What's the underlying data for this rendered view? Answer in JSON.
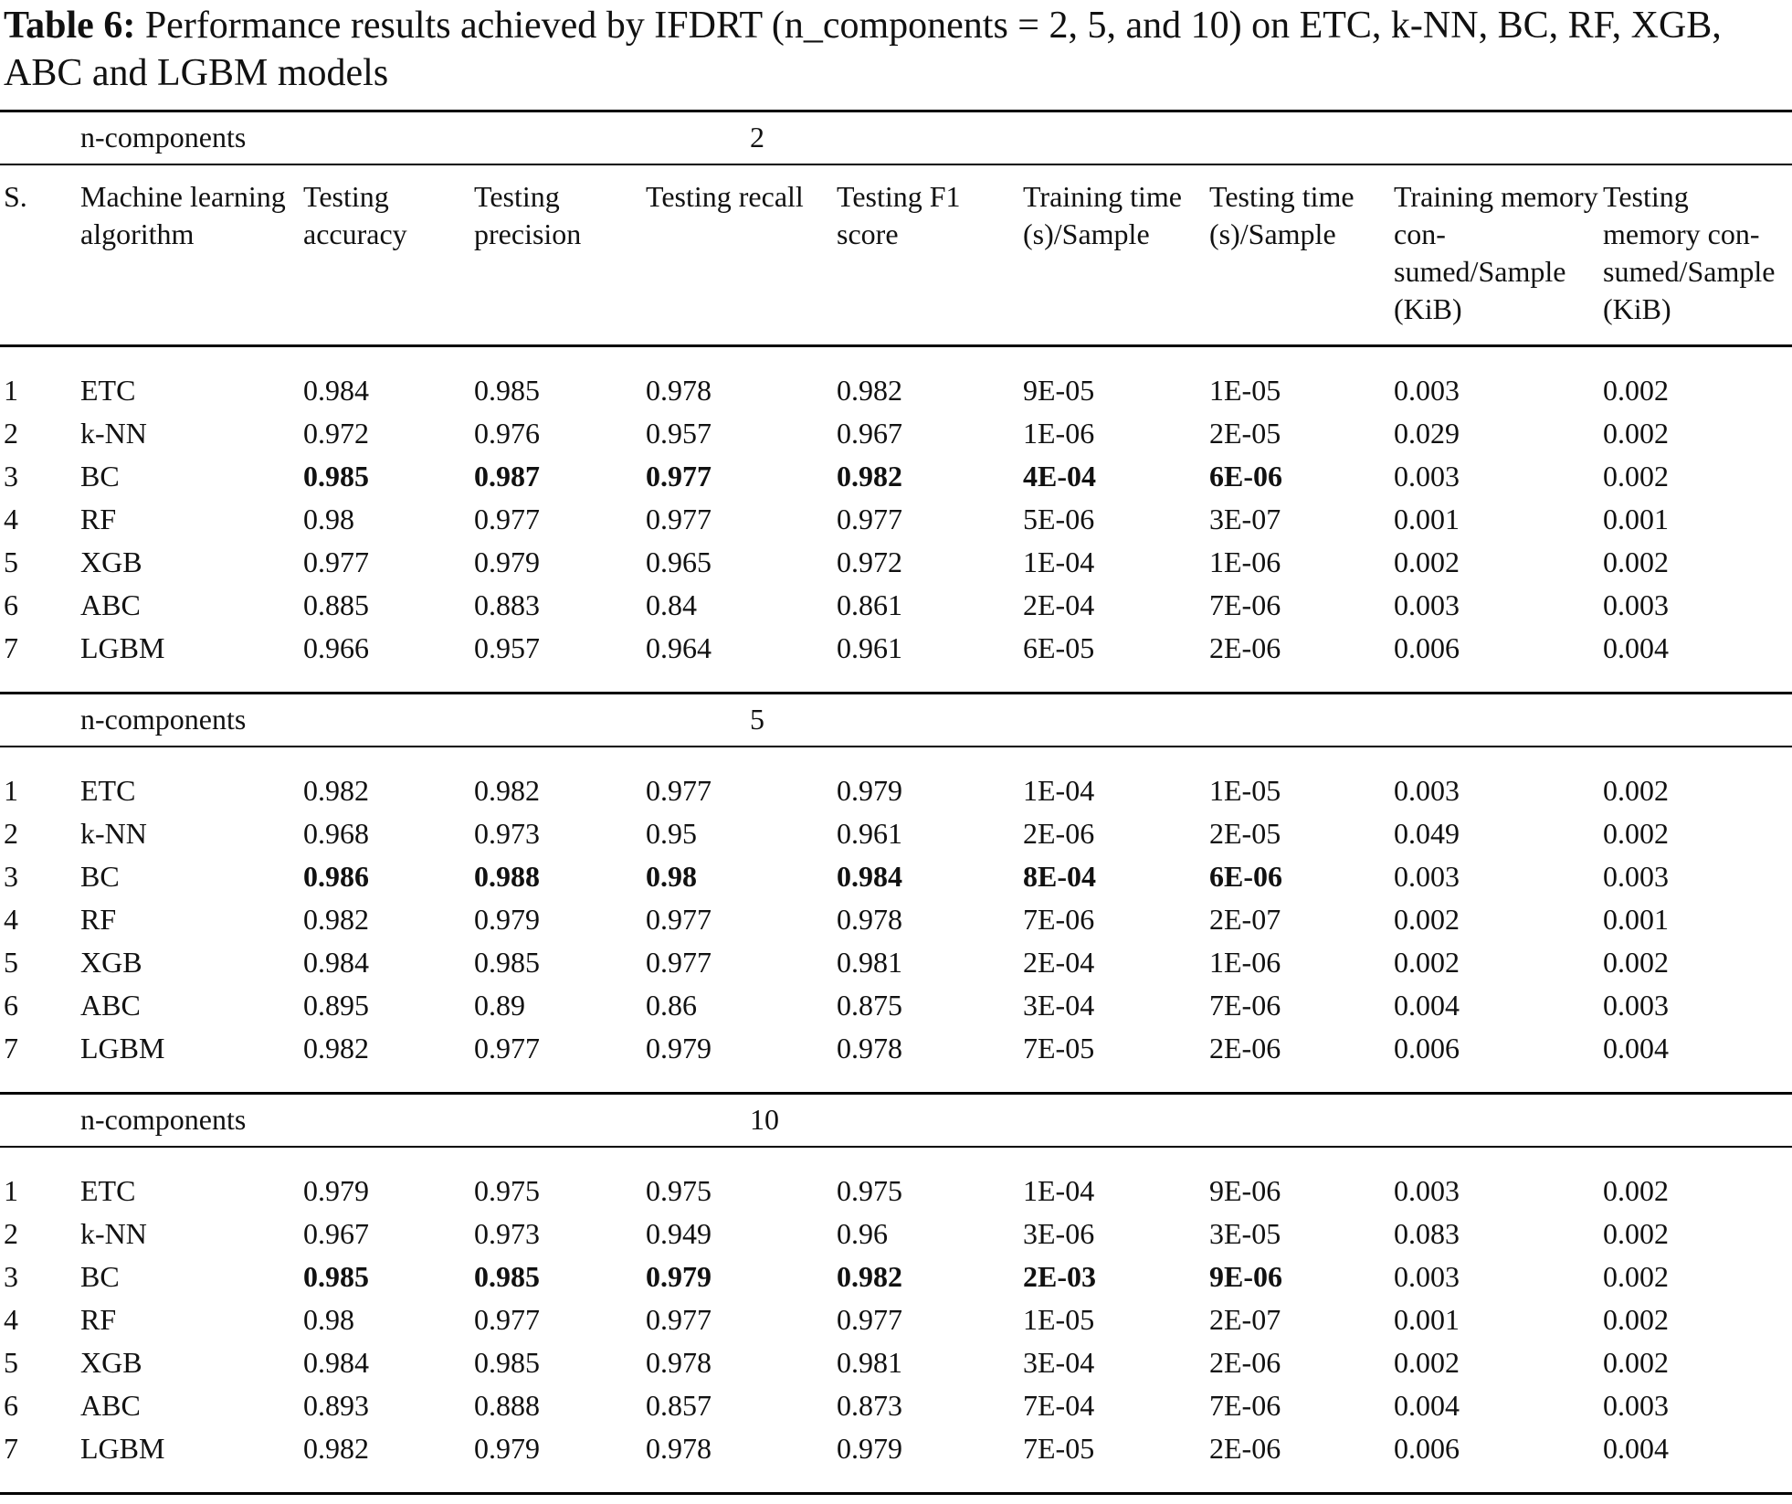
{
  "caption": {
    "label": "Table 6:",
    "text": "Performance results achieved by IFDRT (n_components = 2, 5, and 10) on ETC, k-NN, BC, RF, XGB, ABC and LGBM models"
  },
  "table": {
    "columns": [
      "S.",
      "Machine learning algorithm",
      "Testing accuracy",
      "Testing precision",
      "Testing recall",
      "Testing F1 score",
      "Training time (s)/Sample",
      "Testing time (s)/Sample",
      "Training memory con-sumed/Sample (KiB)",
      "Testing memory con-sumed/Sample (KiB)"
    ],
    "sections": [
      {
        "label": "n-components",
        "value": "2",
        "rows": [
          [
            "1",
            "ETC",
            "0.984",
            "0.985",
            "0.978",
            "0.982",
            "9E-05",
            "1E-05",
            "0.003",
            "0.002"
          ],
          [
            "2",
            "k-NN",
            "0.972",
            "0.976",
            "0.957",
            "0.967",
            "1E-06",
            "2E-05",
            "0.029",
            "0.002"
          ],
          [
            "3",
            "BC",
            "0.985",
            "0.987",
            "0.977",
            "0.982",
            "4E-04",
            "6E-06",
            "0.003",
            "0.002"
          ],
          [
            "4",
            "RF",
            "0.98",
            "0.977",
            "0.977",
            "0.977",
            "5E-06",
            "3E-07",
            "0.001",
            "0.001"
          ],
          [
            "5",
            "XGB",
            "0.977",
            "0.979",
            "0.965",
            "0.972",
            "1E-04",
            "1E-06",
            "0.002",
            "0.002"
          ],
          [
            "6",
            "ABC",
            "0.885",
            "0.883",
            "0.84",
            "0.861",
            "2E-04",
            "7E-06",
            "0.003",
            "0.003"
          ],
          [
            "7",
            "LGBM",
            "0.966",
            "0.957",
            "0.964",
            "0.961",
            "6E-05",
            "2E-06",
            "0.006",
            "0.004"
          ]
        ]
      },
      {
        "label": "n-components",
        "value": "5",
        "rows": [
          [
            "1",
            "ETC",
            "0.982",
            "0.982",
            "0.977",
            "0.979",
            "1E-04",
            "1E-05",
            "0.003",
            "0.002"
          ],
          [
            "2",
            "k-NN",
            "0.968",
            "0.973",
            "0.95",
            "0.961",
            "2E-06",
            "2E-05",
            "0.049",
            "0.002"
          ],
          [
            "3",
            "BC",
            "0.986",
            "0.988",
            "0.98",
            "0.984",
            "8E-04",
            "6E-06",
            "0.003",
            "0.003"
          ],
          [
            "4",
            "RF",
            "0.982",
            "0.979",
            "0.977",
            "0.978",
            "7E-06",
            "2E-07",
            "0.002",
            "0.001"
          ],
          [
            "5",
            "XGB",
            "0.984",
            "0.985",
            "0.977",
            "0.981",
            "2E-04",
            "1E-06",
            "0.002",
            "0.002"
          ],
          [
            "6",
            "ABC",
            "0.895",
            "0.89",
            "0.86",
            "0.875",
            "3E-04",
            "7E-06",
            "0.004",
            "0.003"
          ],
          [
            "7",
            "LGBM",
            "0.982",
            "0.977",
            "0.979",
            "0.978",
            "7E-05",
            "2E-06",
            "0.006",
            "0.004"
          ]
        ]
      },
      {
        "label": "n-components",
        "value": "10",
        "rows": [
          [
            "1",
            "ETC",
            "0.979",
            "0.975",
            "0.975",
            "0.975",
            "1E-04",
            "9E-06",
            "0.003",
            "0.002"
          ],
          [
            "2",
            "k-NN",
            "0.967",
            "0.973",
            "0.949",
            "0.96",
            "3E-06",
            "3E-05",
            "0.083",
            "0.002"
          ],
          [
            "3",
            "BC",
            "0.985",
            "0.985",
            "0.979",
            "0.982",
            "2E-03",
            "9E-06",
            "0.003",
            "0.002"
          ],
          [
            "4",
            "RF",
            "0.98",
            "0.977",
            "0.977",
            "0.977",
            "1E-05",
            "2E-07",
            "0.001",
            "0.002"
          ],
          [
            "5",
            "XGB",
            "0.984",
            "0.985",
            "0.978",
            "0.981",
            "3E-04",
            "2E-06",
            "0.002",
            "0.002"
          ],
          [
            "6",
            "ABC",
            "0.893",
            "0.888",
            "0.857",
            "0.873",
            "7E-04",
            "7E-06",
            "0.004",
            "0.003"
          ],
          [
            "7",
            "LGBM",
            "0.982",
            "0.979",
            "0.978",
            "0.979",
            "7E-05",
            "2E-06",
            "0.006",
            "0.004"
          ]
        ]
      }
    ]
  }
}
